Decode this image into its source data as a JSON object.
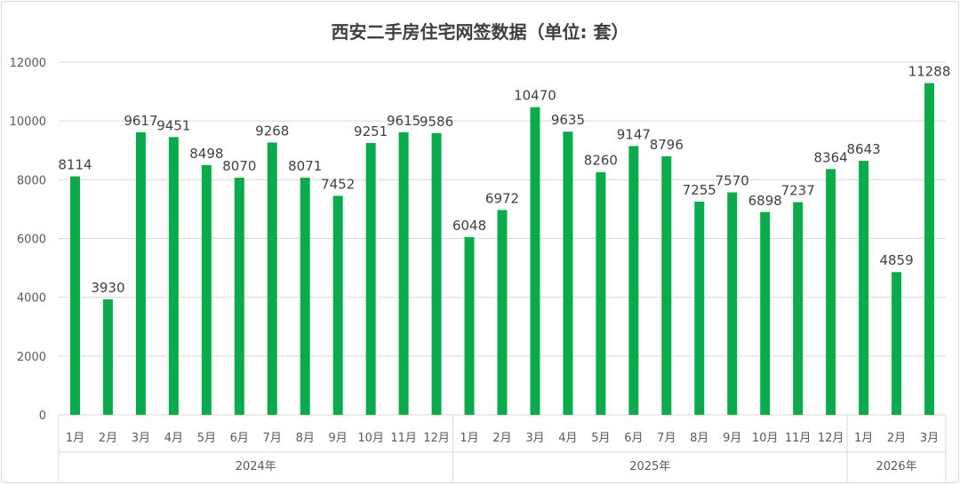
{
  "chart_data": {
    "type": "bar",
    "title": "西安二手房住宅网签数据（单位: 套）",
    "xlabel": "",
    "ylabel": "",
    "ylim": [
      0,
      12000
    ],
    "yticks": [
      0,
      2000,
      4000,
      6000,
      8000,
      10000,
      12000
    ],
    "grid": true,
    "bar_color": "#0aab4a",
    "categories": [
      "1月",
      "2月",
      "3月",
      "4月",
      "5月",
      "6月",
      "7月",
      "8月",
      "9月",
      "10月",
      "11月",
      "12月",
      "1月",
      "2月",
      "3月",
      "4月",
      "5月",
      "6月",
      "7月",
      "8月",
      "9月",
      "10月",
      "11月",
      "12月",
      "1月",
      "2月",
      "3月"
    ],
    "groups": [
      {
        "label": "2024年",
        "count": 12
      },
      {
        "label": "2025年",
        "count": 12
      },
      {
        "label": "2026年",
        "count": 3
      }
    ],
    "values": [
      8114,
      3930,
      9617,
      9451,
      8498,
      8070,
      9268,
      8071,
      7452,
      9251,
      9615,
      9586,
      6048,
      6972,
      10470,
      9635,
      8260,
      9147,
      8796,
      7255,
      7570,
      6898,
      7237,
      8364,
      8643,
      4859,
      11288
    ]
  }
}
